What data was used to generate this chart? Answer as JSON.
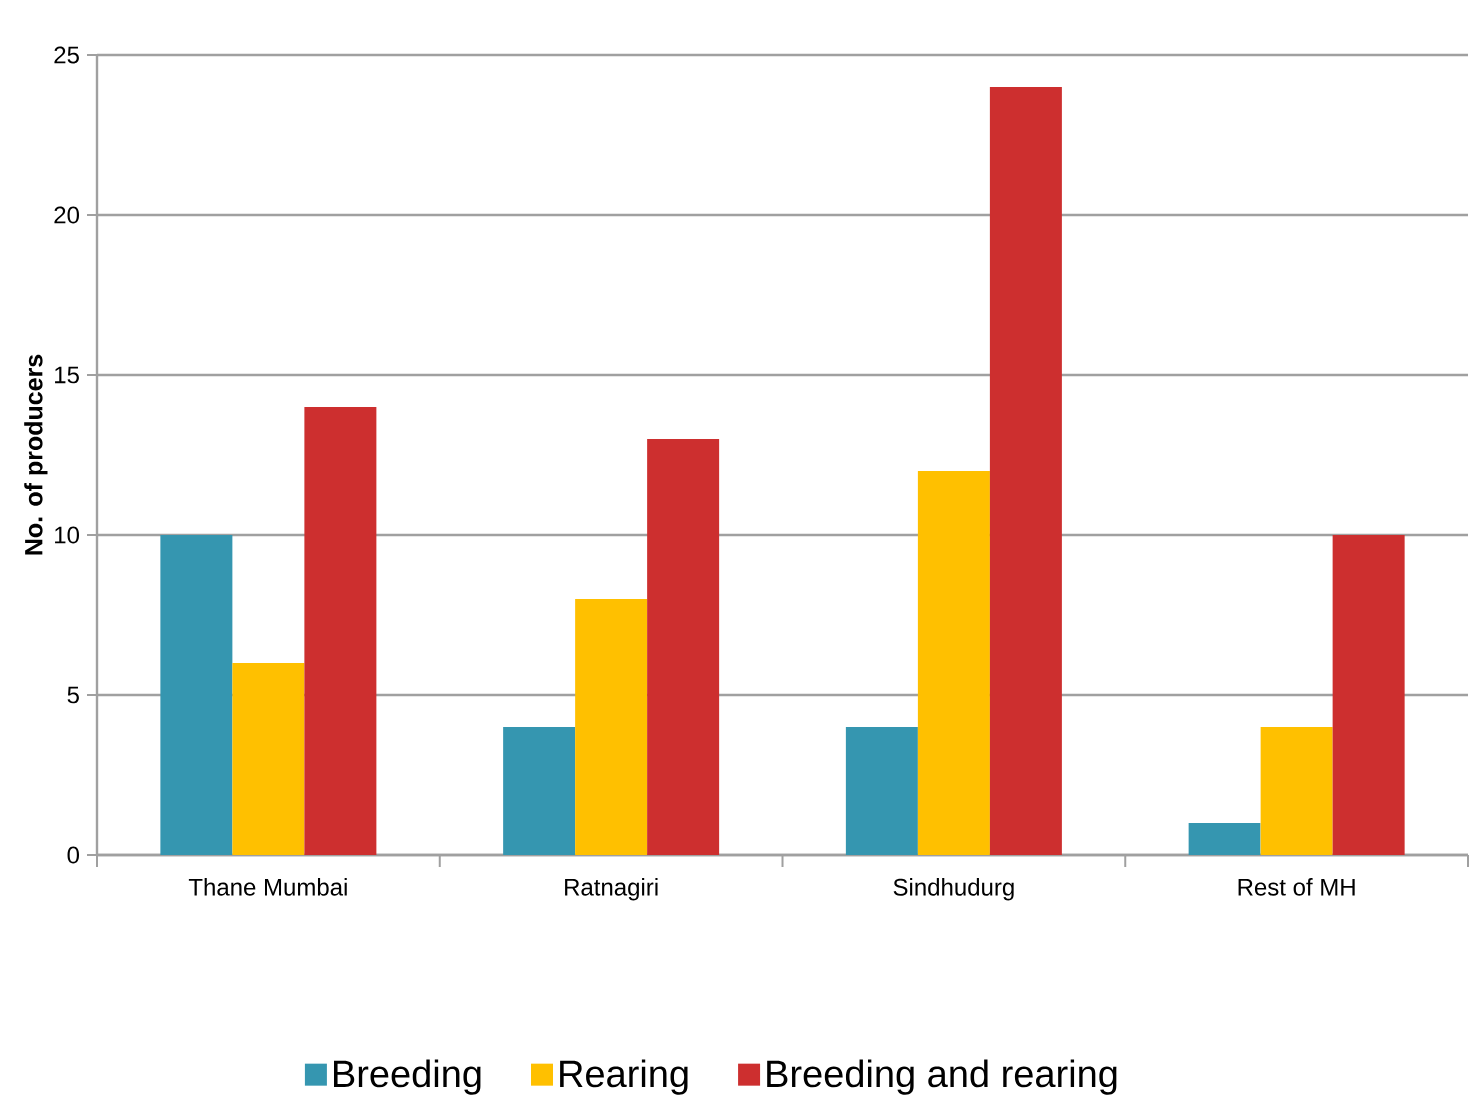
{
  "chart_data": {
    "type": "bar",
    "ylabel": "No. of producers",
    "categories": [
      "Thane Mumbai",
      "Ratnagiri",
      "Sindhudurg",
      "Rest of MH"
    ],
    "series": [
      {
        "name": "Breeding",
        "color": "#3596b0",
        "values": [
          10,
          4,
          4,
          1
        ]
      },
      {
        "name": "Rearing",
        "color": "#ffc000",
        "values": [
          6,
          8,
          12,
          4
        ]
      },
      {
        "name": "Breeding and rearing",
        "color": "#cd2f2f",
        "values": [
          14,
          13,
          24,
          10
        ]
      }
    ],
    "ylim": [
      0,
      25
    ],
    "yticks": [
      0,
      5,
      10,
      15,
      20,
      25
    ],
    "grid": "y",
    "legend": "bottom"
  }
}
